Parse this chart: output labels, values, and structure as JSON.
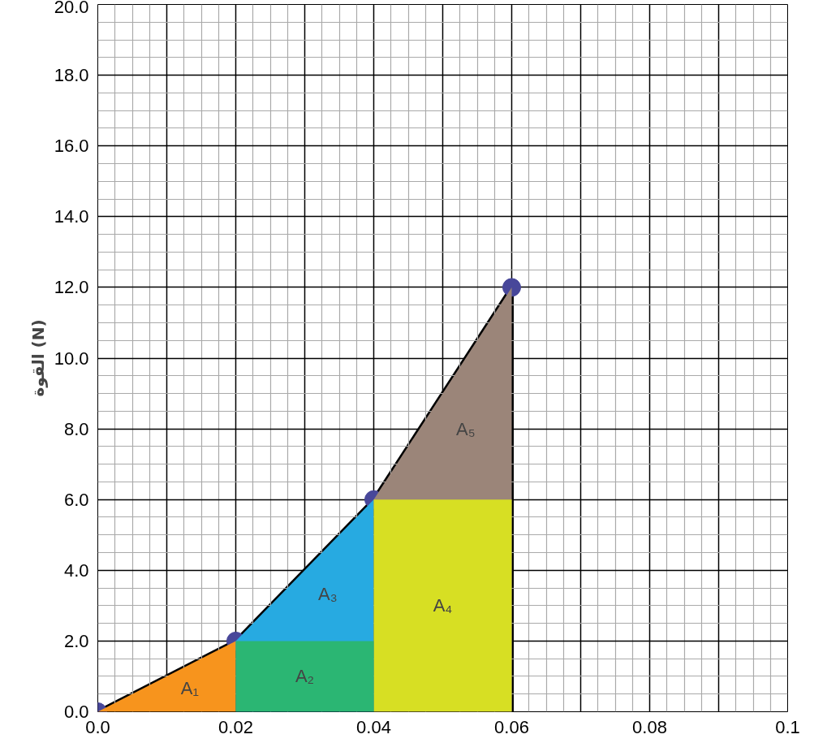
{
  "chart_data": {
    "type": "area",
    "ylabel": "القوة (N)",
    "xlim": [
      0,
      0.1
    ],
    "ylim": [
      0,
      20
    ],
    "xticks": [
      {
        "value": 0,
        "label": "0.0"
      },
      {
        "value": 0.01,
        "label": null
      },
      0.02,
      {
        "value": 0.03,
        "label": null
      },
      0.04,
      {
        "value": 0.05,
        "label": null
      },
      0.06,
      {
        "value": 0.07,
        "label": null
      },
      0.08,
      {
        "value": 0.09,
        "label": null
      },
      0.1
    ],
    "yticks": [
      {
        "value": 0,
        "label": "0.0"
      },
      {
        "value": 2,
        "label": "2.0"
      },
      {
        "value": 4,
        "label": "4.0"
      },
      {
        "value": 6,
        "label": "6.0"
      },
      {
        "value": 8,
        "label": "8.0"
      },
      {
        "value": 10,
        "label": "10.0"
      },
      {
        "value": 12,
        "label": "12.0"
      },
      {
        "value": 14,
        "label": "14.0"
      },
      {
        "value": 16,
        "label": "16.0"
      },
      {
        "value": 18,
        "label": "18.0"
      },
      {
        "value": 20,
        "label": "20.0"
      }
    ],
    "grid": true,
    "series": [
      {
        "name": "A₁",
        "color": "#f7941d",
        "x": [
          0,
          0.02
        ],
        "values": [
          0,
          2
        ]
      },
      {
        "name": "A₂",
        "color": "#2bb673",
        "x": [
          0.02,
          0.04
        ],
        "values": [
          2,
          2
        ]
      },
      {
        "name": "A₃",
        "color": "#27aae1",
        "x": [
          0.02,
          0.04
        ],
        "values": [
          2,
          6
        ]
      },
      {
        "name": "A₄",
        "color": "#d7df23",
        "x": [
          0.04,
          0.06
        ],
        "values": [
          6,
          6
        ]
      },
      {
        "name": "A₅",
        "color": "#9b8579",
        "x": [
          0.04,
          0.06
        ],
        "values": [
          6,
          12
        ]
      },
      {
        "type": "scatter",
        "color": "#48479a",
        "marker": "circle",
        "x": [
          0,
          0.02,
          0.04,
          0.06
        ],
        "values": [
          0,
          2,
          6,
          12
        ]
      }
    ]
  }
}
